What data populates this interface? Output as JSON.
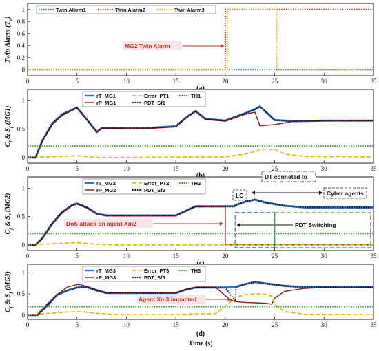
{
  "chart_data": [
    {
      "type": "line",
      "panel_label": "(a)",
      "ylabel": "Twin Alarm (T_a)",
      "xlim": [
        0,
        35
      ],
      "ylim": [
        -0.1,
        1.1
      ],
      "yticks": [
        0,
        0.2,
        0.4,
        0.6,
        0.8,
        1
      ],
      "xticks": [
        0,
        5,
        10,
        15,
        20,
        25,
        30,
        35
      ],
      "legend": {
        "placement": "top",
        "entries": [
          "Twin Alarm1",
          "Twin Alarm2",
          "Twin Alarm3"
        ]
      },
      "series": [
        {
          "name": "Twin Alarm1",
          "color": "#1f6fc9",
          "style": "dotted",
          "x": [
            0,
            35
          ],
          "y": [
            0,
            0
          ]
        },
        {
          "name": "Twin Alarm2",
          "color": "#b5361b",
          "style": "dotted",
          "x": [
            0,
            20,
            20,
            35
          ],
          "y": [
            0,
            0,
            1,
            1
          ]
        },
        {
          "name": "Twin Alarm3",
          "color": "#e0b400",
          "style": "dotted",
          "x": [
            0,
            20.2,
            20.2,
            25.2,
            25.2,
            35
          ],
          "y": [
            0,
            0,
            1,
            1,
            0,
            0
          ]
        }
      ],
      "annotations": [
        {
          "text": "MG2 Twin Alarm",
          "x": 20,
          "y": 0.35,
          "color": "#b5361b"
        }
      ]
    },
    {
      "type": "line",
      "panel_label": "(b)",
      "ylabel": "C_f & S_f (MG1)",
      "xlim": [
        0,
        35
      ],
      "ylim": [
        -0.1,
        1.2
      ],
      "yticks": [
        0,
        0.5,
        1
      ],
      "xticks": [
        0,
        5,
        10,
        15,
        20,
        25,
        30,
        35
      ],
      "legend": {
        "placement": "top-left",
        "entries": [
          "rT_MG1",
          "rP_MG1",
          "Error_PT1",
          "PDT_Sf1",
          "TH1"
        ]
      },
      "series": [
        {
          "name": "rT_MG1",
          "color": "#2f6fd0",
          "style": "solid-thick",
          "x": [
            0,
            0.8,
            1.5,
            2.5,
            3.5,
            4.5,
            5,
            6,
            7,
            7.5,
            9,
            12,
            15,
            16,
            17,
            18,
            20,
            22,
            23,
            23.5,
            25,
            27,
            30,
            35
          ],
          "y": [
            0,
            0,
            0.3,
            0.6,
            0.76,
            0.84,
            0.88,
            0.67,
            0.45,
            0.52,
            0.52,
            0.52,
            0.55,
            0.7,
            0.82,
            0.68,
            0.65,
            0.78,
            0.85,
            0.9,
            0.66,
            0.64,
            0.65,
            0.65
          ]
        },
        {
          "name": "rP_MG1",
          "color": "#8b1a1a",
          "style": "solid",
          "x": [
            0,
            0.8,
            1.5,
            2.5,
            3.5,
            4.5,
            5,
            6,
            7,
            7.5,
            9,
            12,
            15,
            16,
            17,
            18,
            20,
            22,
            23,
            23.5,
            25,
            27,
            30,
            35
          ],
          "y": [
            0,
            0,
            0.28,
            0.58,
            0.74,
            0.83,
            0.87,
            0.66,
            0.44,
            0.51,
            0.51,
            0.51,
            0.54,
            0.69,
            0.81,
            0.67,
            0.64,
            0.76,
            0.8,
            0.56,
            0.58,
            0.64,
            0.65,
            0.65
          ]
        },
        {
          "name": "Error_PT1",
          "color": "#e0b400",
          "style": "dashed",
          "x": [
            0,
            5,
            7,
            8,
            20,
            22,
            24,
            25,
            26,
            28,
            35
          ],
          "y": [
            0,
            0.03,
            0,
            0,
            0.01,
            0.06,
            0.15,
            0.14,
            0.06,
            0.02,
            0.01
          ]
        },
        {
          "name": "PDT_Sf1",
          "color": "#111111",
          "style": "dotted",
          "x": [
            0,
            0.8,
            1.5,
            2.5,
            3.5,
            4.5,
            5,
            6,
            7,
            7.5,
            9,
            12,
            15,
            16,
            17,
            18,
            20,
            22,
            23,
            23.5,
            25,
            27,
            30,
            35
          ],
          "y": [
            0,
            0,
            0.3,
            0.6,
            0.76,
            0.84,
            0.88,
            0.67,
            0.45,
            0.52,
            0.52,
            0.52,
            0.55,
            0.7,
            0.82,
            0.68,
            0.65,
            0.78,
            0.85,
            0.9,
            0.66,
            0.64,
            0.65,
            0.65
          ]
        },
        {
          "name": "TH1",
          "color": "#2e9e2e",
          "style": "dotted",
          "x": [
            0,
            35
          ],
          "y": [
            0.2,
            0.2
          ]
        }
      ]
    },
    {
      "type": "line",
      "panel_label": "(c)",
      "ylabel": "C_f & S_f (MG2)",
      "xlim": [
        0,
        35
      ],
      "ylim": [
        -0.1,
        1.2
      ],
      "yticks": [
        0,
        0.5,
        1
      ],
      "xticks": [
        0,
        5,
        10,
        15,
        20,
        25,
        30,
        35
      ],
      "legend": {
        "placement": "top-left",
        "entries": [
          "rT_MG2",
          "rP_MG2",
          "Error_PT2",
          "PDT_Sf2",
          "TH2"
        ]
      },
      "series": [
        {
          "name": "rT_MG2",
          "color": "#2f6fd0",
          "style": "solid-thick",
          "x": [
            0,
            0.8,
            1.5,
            2.5,
            3.5,
            4.5,
            5,
            6,
            7,
            8,
            12,
            15,
            16,
            17,
            20,
            20.9,
            21,
            22,
            23,
            24,
            26,
            28,
            30,
            35
          ],
          "y": [
            0,
            0,
            0.12,
            0.38,
            0.58,
            0.7,
            0.73,
            0.66,
            0.55,
            0.52,
            0.52,
            0.52,
            0.6,
            0.68,
            0.68,
            0.68,
            0.7,
            0.76,
            0.8,
            0.75,
            0.69,
            0.66,
            0.66,
            0.66
          ]
        },
        {
          "name": "rP_MG2",
          "color": "#8b1a1a",
          "style": "solid",
          "x": [
            0,
            0.8,
            1.5,
            2.5,
            3.5,
            4.5,
            5,
            6,
            7,
            8,
            12,
            15,
            16,
            17,
            20,
            20,
            35
          ],
          "y": [
            0,
            0,
            0.11,
            0.36,
            0.56,
            0.69,
            0.72,
            0.65,
            0.54,
            0.51,
            0.51,
            0.51,
            0.59,
            0.67,
            0.67,
            0,
            0
          ]
        },
        {
          "name": "Error_PT2",
          "color": "#e0b400",
          "style": "dashed",
          "x": [
            0,
            5,
            7,
            9,
            20,
            35
          ],
          "y": [
            0,
            0.04,
            0.01,
            0,
            0,
            0
          ]
        },
        {
          "name": "PDT_Sf2",
          "color": "#111111",
          "style": "dotted",
          "x": [
            0,
            0.8,
            1.5,
            2.5,
            3.5,
            4.5,
            5,
            6,
            7,
            8,
            12,
            15,
            16,
            17,
            20,
            20.9,
            21,
            22,
            23,
            24,
            26,
            28,
            30,
            35
          ],
          "y": [
            0,
            0,
            0.12,
            0.38,
            0.58,
            0.7,
            0.73,
            0.66,
            0.55,
            0.52,
            0.52,
            0.52,
            0.6,
            0.68,
            0.68,
            0.68,
            0.7,
            0.76,
            0.8,
            0.75,
            0.69,
            0.66,
            0.66,
            0.66
          ]
        },
        {
          "name": "TH2",
          "color": "#2e9e2e",
          "style": "dotted",
          "x": [
            0,
            35
          ],
          "y": [
            0.2,
            0.2
          ]
        }
      ],
      "annotations": [
        {
          "text": "DoS attack on agent Xm2",
          "color": "#b5361b"
        },
        {
          "text": "PDT Switching",
          "color": "#111111"
        },
        {
          "text": "LC",
          "color": "#111111"
        },
        {
          "text": "DT conneted to",
          "color": "#111111"
        },
        {
          "text": "Cyber agents",
          "color": "#111111"
        }
      ]
    },
    {
      "type": "line",
      "panel_label": "(d)",
      "ylabel": "C_f & S_f (MG3)",
      "xlabel": "Time (s)",
      "xlim": [
        0,
        35
      ],
      "ylim": [
        -0.1,
        1.2
      ],
      "yticks": [
        0,
        0.5,
        1
      ],
      "xticks": [
        0,
        5,
        10,
        15,
        20,
        25,
        30,
        35
      ],
      "legend": {
        "placement": "top-left",
        "entries": [
          "rT_MG3",
          "rP_MG3",
          "Error_PT3",
          "PDT_Sf3",
          "TH3"
        ]
      },
      "series": [
        {
          "name": "rT_MG3",
          "color": "#2f6fd0",
          "style": "solid-thick",
          "x": [
            0,
            1,
            2,
            3,
            4,
            5,
            6,
            7,
            8,
            12,
            15,
            16,
            17,
            20,
            21,
            22,
            23,
            24,
            26,
            28,
            30,
            35
          ],
          "y": [
            0,
            0,
            0.25,
            0.48,
            0.58,
            0.65,
            0.66,
            0.58,
            0.52,
            0.52,
            0.52,
            0.6,
            0.65,
            0.65,
            0.66,
            0.73,
            0.78,
            0.75,
            0.69,
            0.66,
            0.66,
            0.66
          ]
        },
        {
          "name": "rP_MG3",
          "color": "#8b1a1a",
          "style": "solid",
          "x": [
            0,
            1,
            2,
            3,
            4,
            5,
            5.3,
            6,
            7,
            8,
            12,
            15,
            16,
            17,
            19,
            20.5,
            21,
            22,
            23,
            24,
            24.7,
            25,
            26,
            28,
            30,
            35
          ],
          "y": [
            0,
            0,
            0.2,
            0.48,
            0.66,
            0.72,
            0.72,
            0.68,
            0.6,
            0.53,
            0.52,
            0.52,
            0.61,
            0.66,
            0.66,
            0.36,
            0.32,
            0.3,
            0.29,
            0.28,
            0.26,
            0.4,
            0.56,
            0.63,
            0.65,
            0.65
          ]
        },
        {
          "name": "Error_PT3",
          "color": "#e0b400",
          "style": "dashed",
          "x": [
            0,
            2,
            4,
            5.5,
            7,
            9,
            15,
            17,
            19,
            20.5,
            21,
            22,
            23,
            24,
            24.7,
            25,
            26,
            28,
            35
          ],
          "y": [
            0,
            0.04,
            0.07,
            0.08,
            0.04,
            0.01,
            0.01,
            0.03,
            0.03,
            0.3,
            0.42,
            0.48,
            0.5,
            0.49,
            0.45,
            0.25,
            0.08,
            0.02,
            0.01
          ]
        },
        {
          "name": "PDT_Sf3",
          "color": "#111111",
          "style": "dotted",
          "x": [
            0,
            1,
            2,
            3,
            4,
            5,
            6,
            7,
            8,
            12,
            15,
            16,
            17,
            20,
            21,
            21.1,
            22,
            23,
            24,
            26,
            28,
            30,
            35
          ],
          "y": [
            0,
            0,
            0.25,
            0.48,
            0.58,
            0.65,
            0.66,
            0.58,
            0.52,
            0.52,
            0.52,
            0.6,
            0.65,
            0.65,
            0.33,
            0.66,
            0.73,
            0.78,
            0.75,
            0.69,
            0.66,
            0.66,
            0.66
          ]
        },
        {
          "name": "TH3",
          "color": "#2e9e2e",
          "style": "dotted",
          "x": [
            0,
            35
          ],
          "y": [
            0.2,
            0.2
          ]
        }
      ],
      "annotations": [
        {
          "text": "Agent Xm3 impacted",
          "color": "#b5361b"
        }
      ]
    }
  ]
}
